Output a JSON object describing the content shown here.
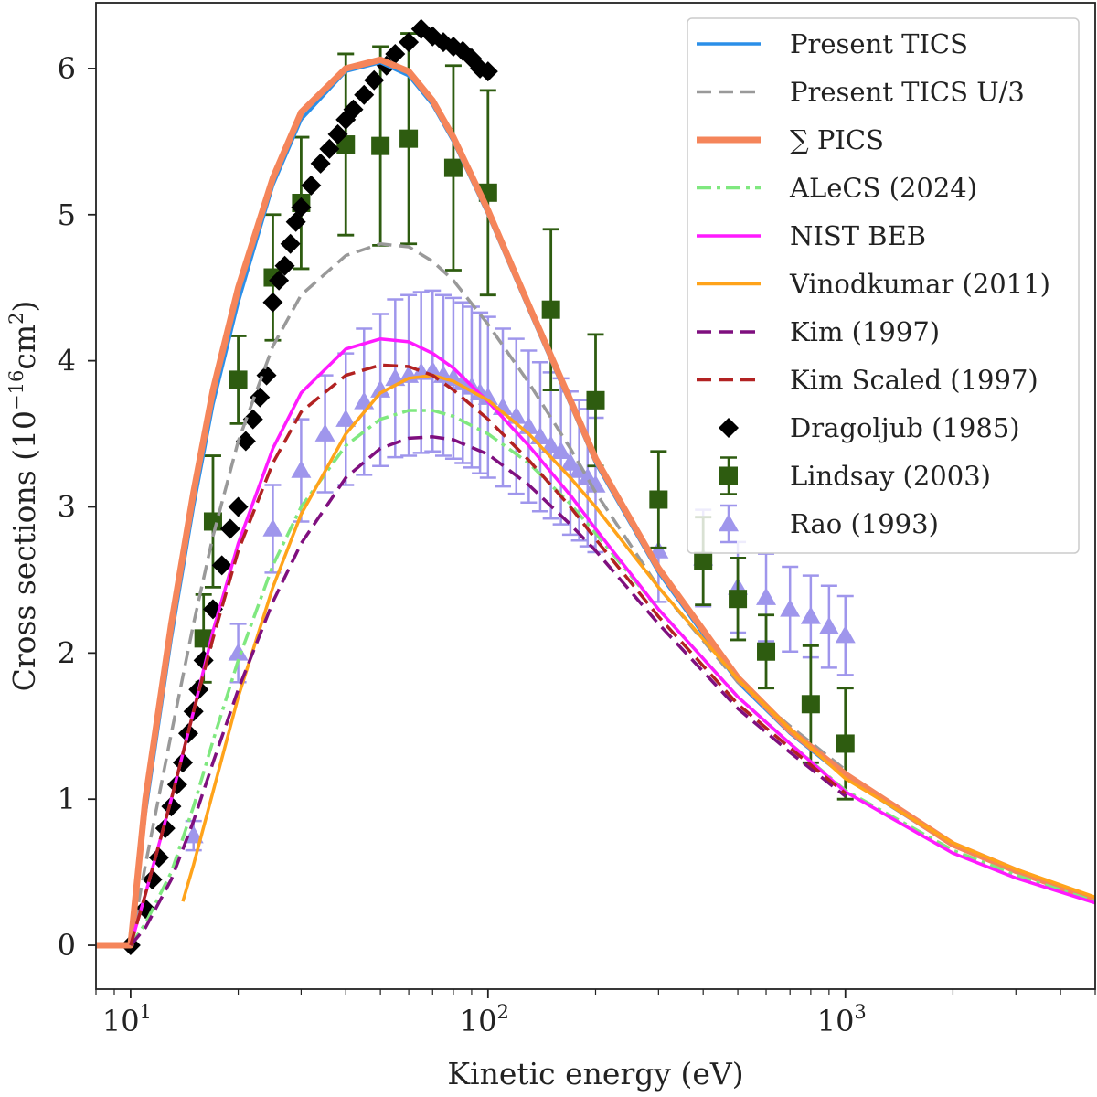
{
  "chart_data": {
    "type": "line",
    "title": "",
    "xlabel": "Kinetic energy (eV)",
    "ylabel_main": "Cross sections (10",
    "ylabel_exp": "−16",
    "ylabel_unit": "cm",
    "ylabel_unit_exp": "2",
    "ylabel_close": ")",
    "xscale": "log",
    "xlim": [
      8,
      5000
    ],
    "ylim": [
      -0.3,
      6.45
    ],
    "xticks": [
      {
        "value": 10,
        "base": "10",
        "exp": "1"
      },
      {
        "value": 100,
        "base": "10",
        "exp": "2"
      },
      {
        "value": 1000,
        "base": "10",
        "exp": "3"
      }
    ],
    "yticks": [
      0,
      1,
      2,
      3,
      4,
      5,
      6
    ],
    "grid": false,
    "legend_position": "top-right",
    "series": [
      {
        "name": "Present TICS",
        "style": "solid",
        "color": "#2b8fe8",
        "width": 3.5,
        "x": [
          8,
          10,
          11,
          13,
          15,
          17,
          20,
          25,
          30,
          40,
          50,
          60,
          70,
          80,
          100,
          130,
          170,
          200,
          300,
          500,
          700,
          1000,
          2000,
          3000,
          5000
        ],
        "y": [
          0,
          0,
          0.9,
          2.1,
          3.0,
          3.7,
          4.4,
          5.2,
          5.65,
          5.98,
          6.04,
          5.95,
          5.75,
          5.5,
          5.0,
          4.35,
          3.7,
          3.3,
          2.55,
          1.8,
          1.45,
          1.15,
          0.68,
          0.5,
          0.3
        ]
      },
      {
        "name": "Present TICS U/3",
        "style": "dashed",
        "color": "#999999",
        "width": 3.5,
        "x": [
          10,
          11,
          13,
          15,
          17,
          20,
          25,
          30,
          40,
          50,
          60,
          70,
          80,
          100,
          130,
          170,
          200,
          300,
          500,
          700,
          1000
        ],
        "y": [
          0,
          0.55,
          1.45,
          2.2,
          2.8,
          3.45,
          4.1,
          4.45,
          4.72,
          4.8,
          4.78,
          4.68,
          4.55,
          4.25,
          3.85,
          3.4,
          3.1,
          2.45,
          1.8,
          1.5,
          1.2
        ]
      },
      {
        "name": "∑ PICS",
        "style": "solid-thick",
        "color": "#f5855a",
        "width": 7,
        "x": [
          8,
          10,
          11,
          13,
          15,
          17,
          20,
          25,
          30,
          40,
          50,
          60,
          70,
          80,
          100,
          130,
          170,
          200,
          300,
          500,
          700,
          1000,
          2000,
          3000,
          5000
        ],
        "y": [
          0,
          0,
          1.0,
          2.2,
          3.1,
          3.8,
          4.5,
          5.25,
          5.7,
          6.0,
          6.06,
          5.98,
          5.78,
          5.53,
          5.03,
          4.38,
          3.73,
          3.33,
          2.58,
          1.83,
          1.47,
          1.17,
          0.69,
          0.51,
          0.31
        ]
      },
      {
        "name": "ALeCS (2024)",
        "style": "dashdot",
        "color": "#7fe87f",
        "width": 3.5,
        "x": [
          10,
          11,
          13,
          15,
          17,
          20,
          25,
          30,
          40,
          50,
          60,
          70,
          80,
          100,
          130,
          170,
          200,
          300,
          500,
          700,
          1000,
          2000,
          3000,
          5000
        ],
        "y": [
          0,
          0.15,
          0.5,
          0.95,
          1.4,
          1.95,
          2.6,
          3.0,
          3.42,
          3.6,
          3.66,
          3.66,
          3.62,
          3.5,
          3.3,
          3.02,
          2.82,
          2.3,
          1.7,
          1.38,
          1.06,
          0.65,
          0.48,
          0.3
        ]
      },
      {
        "name": "NIST BEB",
        "style": "solid",
        "color": "#ff1aff",
        "width": 3.5,
        "x": [
          10,
          11,
          13,
          15,
          17,
          20,
          25,
          30,
          40,
          50,
          60,
          70,
          80,
          100,
          130,
          170,
          200,
          300,
          500,
          700,
          1000,
          2000,
          3000,
          5000
        ],
        "y": [
          0,
          0.35,
          1.0,
          1.6,
          2.15,
          2.75,
          3.4,
          3.78,
          4.08,
          4.15,
          4.13,
          4.05,
          3.95,
          3.72,
          3.42,
          3.08,
          2.85,
          2.3,
          1.7,
          1.38,
          1.05,
          0.63,
          0.46,
          0.29
        ]
      },
      {
        "name": "Vinodkumar (2011)",
        "style": "solid",
        "color": "#ffa31a",
        "width": 3.5,
        "x": [
          14,
          15,
          17,
          20,
          25,
          30,
          40,
          50,
          60,
          70,
          80,
          100,
          130,
          170,
          200,
          300,
          500,
          700,
          1000,
          2000,
          3000,
          5000
        ],
        "y": [
          0.3,
          0.55,
          1.05,
          1.7,
          2.45,
          2.95,
          3.5,
          3.78,
          3.88,
          3.9,
          3.86,
          3.73,
          3.5,
          3.2,
          3.0,
          2.45,
          1.82,
          1.48,
          1.14,
          0.7,
          0.52,
          0.33
        ]
      },
      {
        "name": "Kim (1997)",
        "style": "dashed",
        "color": "#7f0f7f",
        "width": 3.5,
        "x": [
          10,
          11,
          13,
          15,
          17,
          20,
          25,
          30,
          40,
          50,
          60,
          70,
          80,
          100,
          130,
          170,
          200,
          300,
          500,
          700,
          1000
        ],
        "y": [
          0,
          0.12,
          0.45,
          0.85,
          1.25,
          1.75,
          2.35,
          2.75,
          3.2,
          3.4,
          3.47,
          3.48,
          3.46,
          3.36,
          3.15,
          2.88,
          2.7,
          2.2,
          1.62,
          1.32,
          1.02
        ]
      },
      {
        "name": "Kim Scaled (1997)",
        "style": "dashed",
        "color": "#b22222",
        "width": 3.5,
        "x": [
          10,
          11,
          13,
          15,
          17,
          20,
          25,
          30,
          40,
          50,
          60,
          70,
          80,
          100,
          130,
          170,
          200,
          300,
          500,
          700,
          1000
        ],
        "y": [
          0,
          0.35,
          1.0,
          1.6,
          2.1,
          2.7,
          3.3,
          3.65,
          3.9,
          3.97,
          3.96,
          3.9,
          3.8,
          3.6,
          3.32,
          3.0,
          2.78,
          2.25,
          1.65,
          1.35,
          1.04
        ]
      }
    ],
    "scatter": [
      {
        "name": "Dragoljub (1985)",
        "marker": "diamond",
        "color": "#000000",
        "x": [
          10,
          11,
          11.5,
          12,
          12.5,
          13,
          13.5,
          14,
          14.5,
          15,
          15.5,
          16,
          17,
          18,
          19,
          20,
          21,
          22,
          23,
          24,
          25,
          26,
          27,
          28,
          29,
          30,
          32,
          34,
          36,
          38,
          40,
          42,
          45,
          48,
          52,
          55,
          60,
          65,
          70,
          75,
          80,
          85,
          90,
          95,
          100
        ],
        "y": [
          0,
          0.25,
          0.45,
          0.6,
          0.8,
          0.95,
          1.1,
          1.25,
          1.45,
          1.6,
          1.75,
          1.95,
          2.3,
          2.6,
          2.85,
          3.0,
          3.45,
          3.6,
          3.75,
          3.9,
          4.4,
          4.55,
          4.65,
          4.8,
          4.95,
          5.05,
          5.2,
          5.35,
          5.45,
          5.55,
          5.65,
          5.72,
          5.82,
          5.92,
          6.02,
          6.1,
          6.18,
          6.27,
          6.22,
          6.18,
          6.15,
          6.12,
          6.07,
          6.0,
          5.98
        ]
      },
      {
        "name": "Lindsay (2003)",
        "marker": "square",
        "color": "#2e5c10",
        "x": [
          16,
          17,
          20,
          25,
          30,
          40,
          50,
          60,
          80,
          100,
          150,
          200,
          300,
          400,
          500,
          600,
          800,
          1000
        ],
        "y": [
          2.1,
          2.9,
          3.87,
          4.57,
          5.08,
          5.48,
          5.47,
          5.52,
          5.32,
          5.15,
          4.35,
          3.73,
          3.05,
          2.63,
          2.37,
          2.01,
          1.65,
          1.38
        ],
        "err": [
          0.3,
          0.45,
          0.3,
          0.43,
          0.45,
          0.62,
          0.68,
          0.72,
          0.7,
          0.7,
          0.55,
          0.45,
          0.33,
          0.3,
          0.28,
          0.25,
          0.4,
          0.38
        ]
      },
      {
        "name": "Rao (1993)",
        "marker": "triangle",
        "color": "#9f96ec",
        "x": [
          15,
          20,
          25,
          30,
          35,
          40,
          45,
          50,
          55,
          60,
          65,
          70,
          75,
          80,
          85,
          90,
          95,
          100,
          110,
          120,
          130,
          140,
          150,
          160,
          170,
          180,
          190,
          200,
          300,
          400,
          500,
          600,
          700,
          800,
          900,
          1000
        ],
        "y": [
          0.75,
          2.0,
          2.85,
          3.25,
          3.5,
          3.6,
          3.72,
          3.8,
          3.88,
          3.9,
          3.92,
          3.93,
          3.9,
          3.88,
          3.85,
          3.82,
          3.78,
          3.75,
          3.68,
          3.62,
          3.55,
          3.48,
          3.42,
          3.38,
          3.3,
          3.25,
          3.2,
          3.15,
          2.7,
          2.65,
          2.45,
          2.38,
          2.3,
          2.25,
          2.18,
          2.12
        ],
        "err": [
          0.1,
          0.2,
          0.3,
          0.35,
          0.4,
          0.45,
          0.5,
          0.52,
          0.54,
          0.55,
          0.55,
          0.55,
          0.55,
          0.55,
          0.55,
          0.55,
          0.55,
          0.55,
          0.54,
          0.53,
          0.52,
          0.51,
          0.5,
          0.5,
          0.49,
          0.48,
          0.47,
          0.46,
          0.35,
          0.33,
          0.31,
          0.3,
          0.29,
          0.28,
          0.28,
          0.27
        ]
      }
    ]
  }
}
